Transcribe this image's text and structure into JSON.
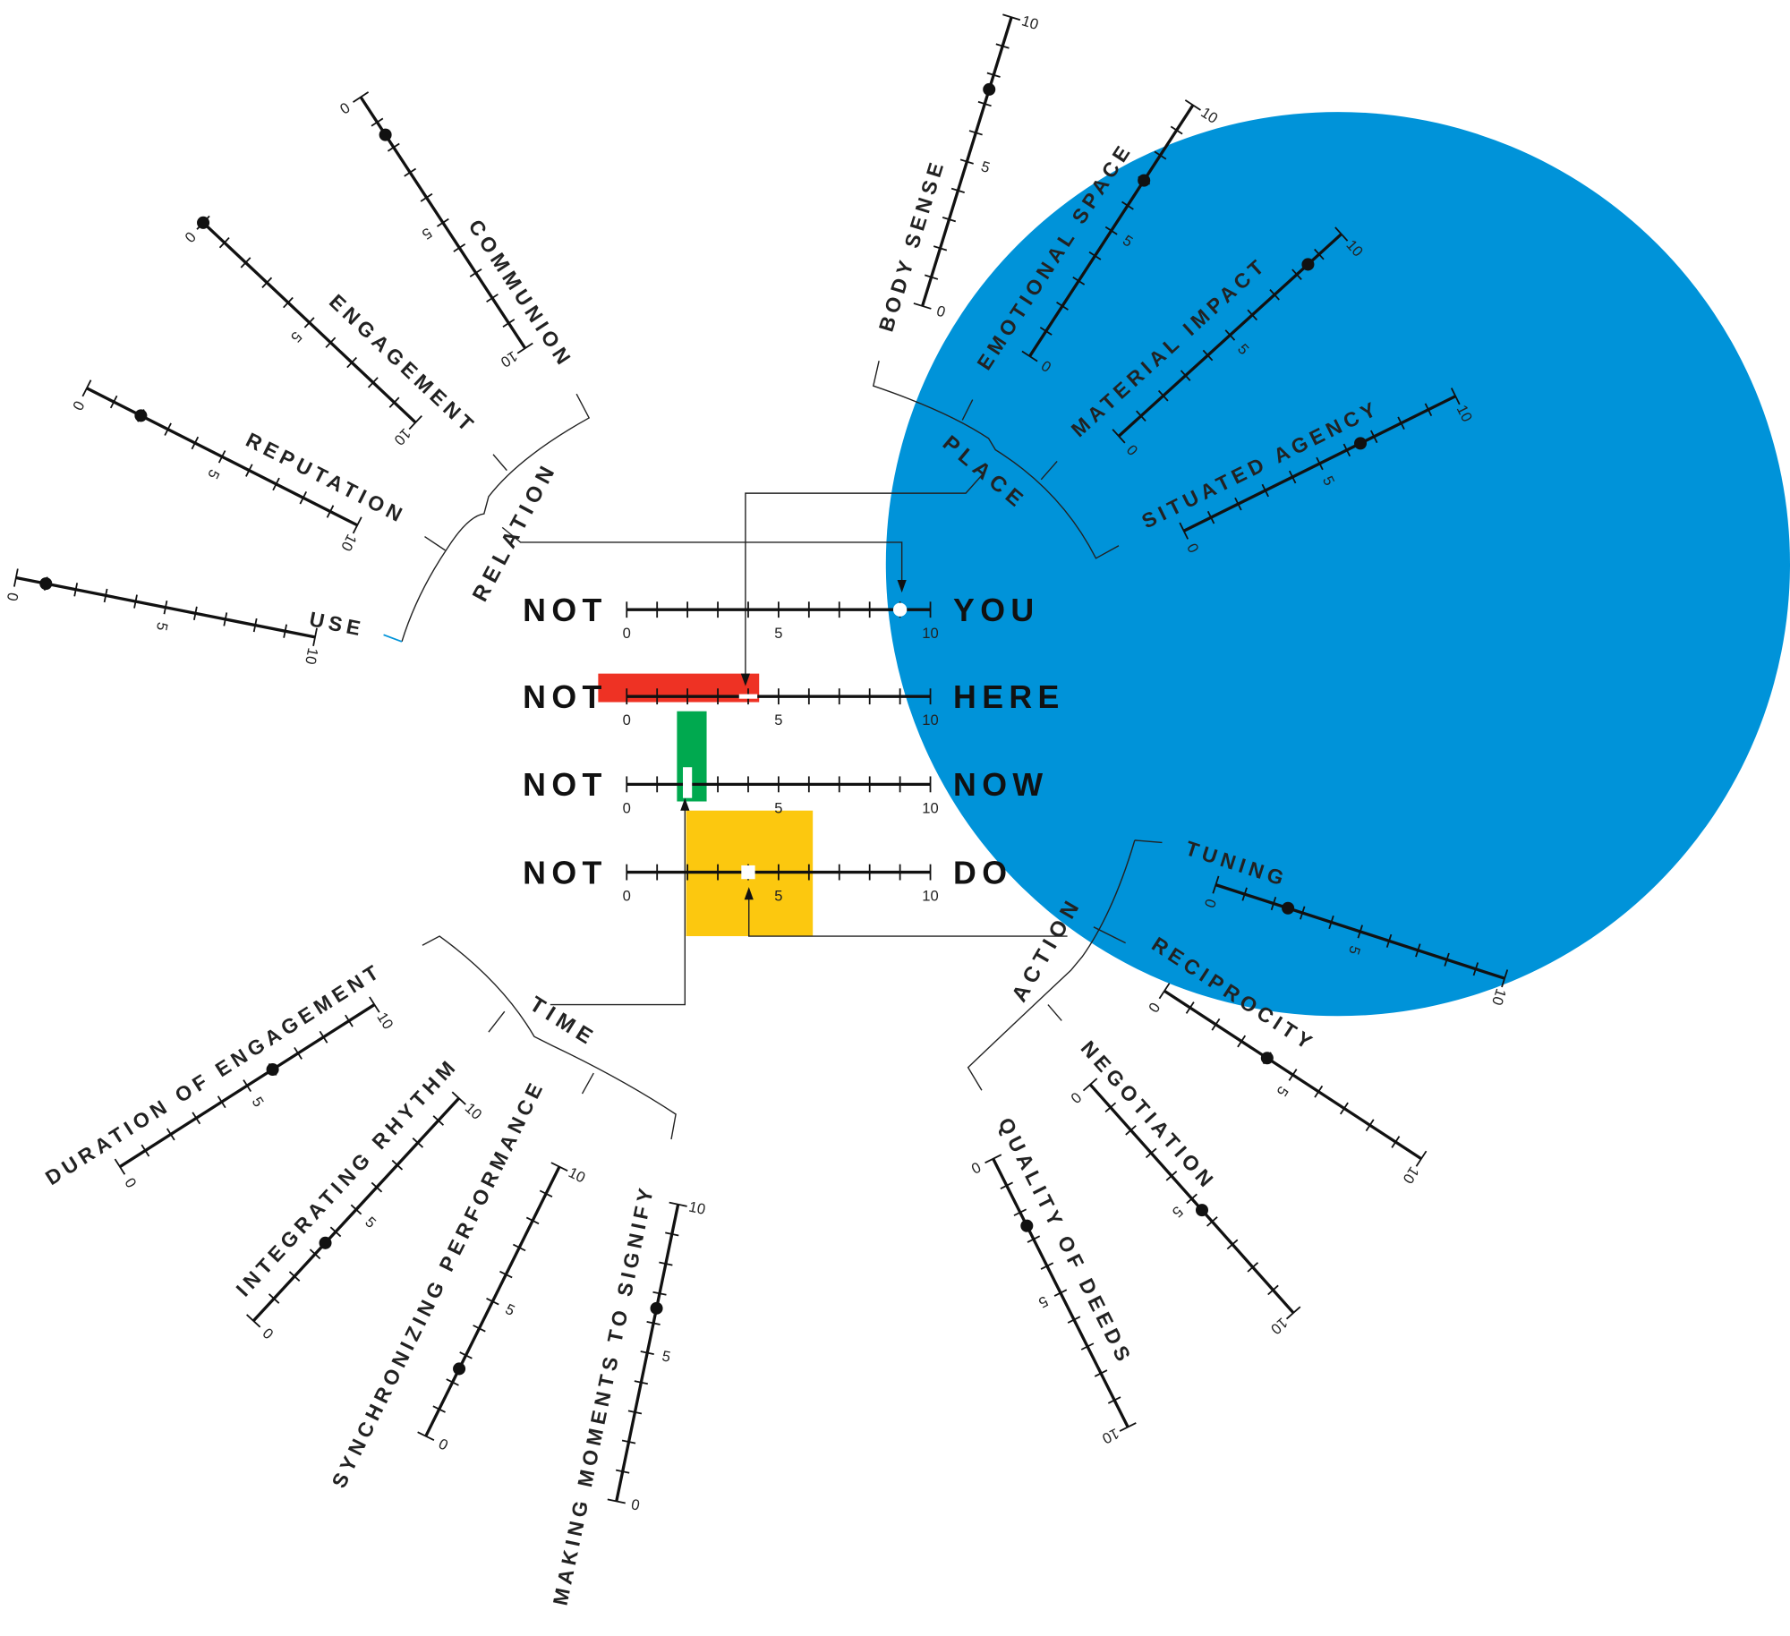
{
  "colors": {
    "you": "#0093d9",
    "here": "#ee3224",
    "now": "#00a94f",
    "do": "#fcc80f",
    "ink": "#111111"
  },
  "central_scales": [
    {
      "id": "you",
      "left": "NOT",
      "right": "YOU",
      "value": 9,
      "marker": "circle",
      "ticks": [
        "0",
        "5",
        "10"
      ]
    },
    {
      "id": "here",
      "left": "NOT",
      "right": "HERE",
      "value": 4,
      "marker": "dash",
      "ticks": [
        "0",
        "5",
        "10"
      ]
    },
    {
      "id": "now",
      "left": "NOT",
      "right": "NOW",
      "value": 2,
      "marker": "bar",
      "ticks": [
        "0",
        "5",
        "10"
      ]
    },
    {
      "id": "do",
      "left": "NOT",
      "right": "DO",
      "value": 4,
      "marker": "square",
      "ticks": [
        "0",
        "5",
        "10"
      ]
    }
  ],
  "groups": [
    {
      "id": "relation",
      "label": "RELATION",
      "feeds": "you",
      "scales": [
        {
          "id": "communion",
          "label": "COMMUNION",
          "value": 1.5
        },
        {
          "id": "engagement",
          "label": "ENGAGEMENT",
          "value": 0
        },
        {
          "id": "reputation",
          "label": "REPUTATION",
          "value": 2
        },
        {
          "id": "use",
          "label": "USE",
          "value": 1
        }
      ]
    },
    {
      "id": "place",
      "label": "PLACE",
      "feeds": "here",
      "scales": [
        {
          "id": "body-sense",
          "label": "BODY SENSE",
          "value": 7.5
        },
        {
          "id": "emotional-space",
          "label": "EMOTIONAL SPACE",
          "value": 7
        },
        {
          "id": "material-impact",
          "label": "MATERIAL IMPACT",
          "value": 8.5
        },
        {
          "id": "situated-agency",
          "label": "SITUATED AGENCY",
          "value": 6.5
        }
      ]
    },
    {
      "id": "action",
      "label": "ACTION",
      "feeds": "do",
      "scales": [
        {
          "id": "tuning",
          "label": "TUNING",
          "value": 2.5
        },
        {
          "id": "reciprocity",
          "label": "RECIPROCITY",
          "value": 4
        },
        {
          "id": "negotiation",
          "label": "NEGOTIATION",
          "value": 5.5
        },
        {
          "id": "quality-of-deeds",
          "label": "QUALITY OF DEEDS",
          "value": 2.5
        }
      ]
    },
    {
      "id": "time",
      "label": "TIME",
      "feeds": "now",
      "scales": [
        {
          "id": "duration-of-engagement",
          "label": "DURATION OF ENGAGEMENT",
          "value": 6
        },
        {
          "id": "integrating-rhythm",
          "label": "INTEGRATING RHYTHM",
          "value": 3.5
        },
        {
          "id": "synchronizing-performance",
          "label": "SYNCHRONIZING PERFORMANCE",
          "value": 2.5
        },
        {
          "id": "making-moments-to-signify",
          "label": "MAKING MOMENTS TO SIGNIFY",
          "value": 6.5
        }
      ]
    }
  ],
  "scale_ticks": [
    "0",
    "5",
    "10"
  ]
}
